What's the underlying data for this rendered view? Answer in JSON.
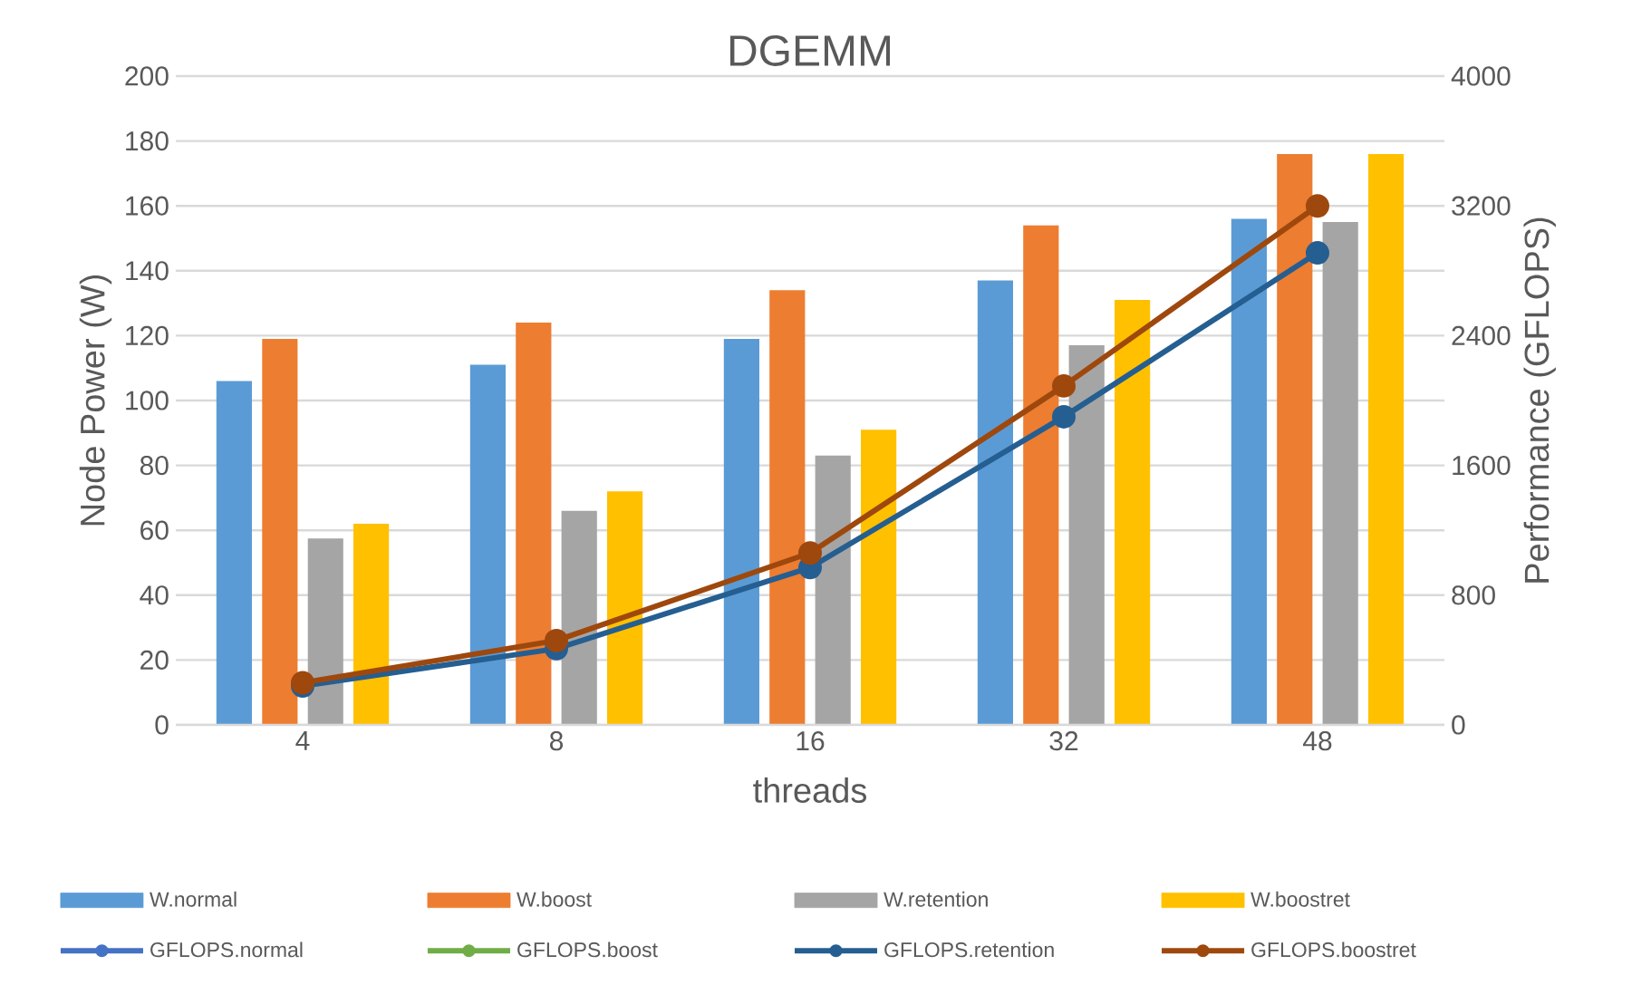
{
  "chart_data": {
    "type": "bar",
    "title": "DGEMM",
    "xlabel": "threads",
    "ylabel": "Node Power (W)",
    "y2label": "Performance (GFLOPS)",
    "categories": [
      "4",
      "8",
      "16",
      "32",
      "48"
    ],
    "series": [
      {
        "name": "W.normal",
        "color": "#5b9bd5",
        "values": [
          106,
          111,
          119,
          137,
          156
        ]
      },
      {
        "name": "W.boost",
        "color": "#ed7d31",
        "values": [
          119,
          124,
          134,
          154,
          176
        ]
      },
      {
        "name": "W.retention",
        "color": "#a5a5a5",
        "values": [
          57.5,
          66,
          83,
          117,
          155
        ]
      },
      {
        "name": "W.boostret",
        "color": "#ffc000",
        "values": [
          62,
          72,
          91,
          131,
          176
        ]
      },
      {
        "name": "GFLOPS.normal",
        "type": "line",
        "axis": "y2",
        "color": "#4472c4",
        "values": [
          null,
          null,
          null,
          null,
          null
        ]
      },
      {
        "name": "GFLOPS.boost",
        "type": "line",
        "axis": "y2",
        "color": "#70ad47",
        "values": [
          null,
          null,
          null,
          null,
          null
        ]
      },
      {
        "name": "GFLOPS.retention",
        "type": "line",
        "axis": "y2",
        "color": "#255e91",
        "values": [
          240,
          470,
          970,
          1900,
          2910
        ]
      },
      {
        "name": "GFLOPS.boostret",
        "type": "line",
        "axis": "y2",
        "color": "#9e480e",
        "values": [
          260,
          520,
          1060,
          2090,
          3200
        ]
      }
    ],
    "ylim": [
      0,
      200
    ],
    "yticks": [
      0,
      20,
      40,
      60,
      80,
      100,
      120,
      140,
      160,
      180,
      200
    ],
    "y2lim": [
      0,
      4000
    ],
    "y2ticks": [
      0,
      800,
      1600,
      2400,
      3200,
      4000
    ],
    "grid": "y",
    "legend": "bottom",
    "marker": "circle",
    "line_style": "solid"
  }
}
